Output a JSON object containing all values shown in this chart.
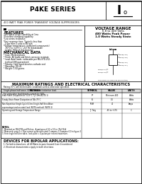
{
  "title": "P4KE SERIES",
  "subtitle": "400 WATT PEAK POWER TRANSIENT VOLTAGE SUPPRESSORS",
  "voltage_range_title": "VOLTAGE RANGE",
  "voltage_range_line1": "6.8 to 440 Volts",
  "voltage_range_line2": "400 Watts Peak Power",
  "voltage_range_line3": "1.0 Watts Steady State",
  "features_title": "FEATURES",
  "features": [
    "*400 Watts Surge Capability at 1ms",
    "*Excellent clamping capability",
    "*Low series resistance",
    "*Fast response time: Typically less than",
    "  1.0ps from 0 volts to BV min",
    "*Voltage temperature coefficient(components)",
    "  -65°C to +175°C / -217 W (breakdown)",
    "  weight: 500g of chip duration"
  ],
  "mech_title": "MECHANICAL DATA",
  "mech": [
    "* Case: Molded plastic",
    "* Finish: All leads and finish corrosion resistant",
    "* Lead: Axial leads, solderable per MIL-STD-202,",
    "  method 208 guaranteed",
    "* Polarity: Color band denotes cathode end",
    "* Mounting: DO-41",
    "* Weight: 1.04 grams"
  ],
  "max_ratings_title": "MAXIMUM RATINGS AND ELECTRICAL CHARACTERISTICS",
  "table_headers": [
    "RATINGS",
    "SYMBOL",
    "VALUE",
    "UNITS"
  ],
  "table_rows": [
    [
      "Peak Power Dissipation at T=25°C, TJ=1ms(NOTE 1)",
      "PP",
      "Minimum 400",
      "Watts"
    ],
    [
      "Steady State Power Dissipation at TA=75°C",
      "Ps",
      "1.0",
      "Watts"
    ],
    [
      "Non-Repetitive Single Cycle 8.3ms Single-Half Sine-Wave\nsupercategorized on rated load (NOTE method) (NOTE 2)",
      "IFSM",
      "40",
      "Amps"
    ],
    [
      "Operating and Storage Temperature Range",
      "TJ, Tstg",
      "-65 to +175",
      "°C"
    ]
  ],
  "notes_title": "NOTES:",
  "notes": [
    "1. Mounted on FR4 PCB and Pb-free.  A pad area of 0.5 x 0.5 in (Pb) F8 A",
    "2. Measured using 2 x 10μs current pulse with rated 1 ampere 1.0 ampere 0.0 in figure 3",
    "3. Free single half-sine wave, load pulse = 4 pulses per second maximum."
  ],
  "bipolar_title": "DEVICES FOR BIPOLAR APPLICATIONS:",
  "bipolar": [
    "1. For bidirectional use, all 40 Watts to pass forward 4 are 4 numbered",
    "2. Electrical characteristics apply in both directions"
  ]
}
